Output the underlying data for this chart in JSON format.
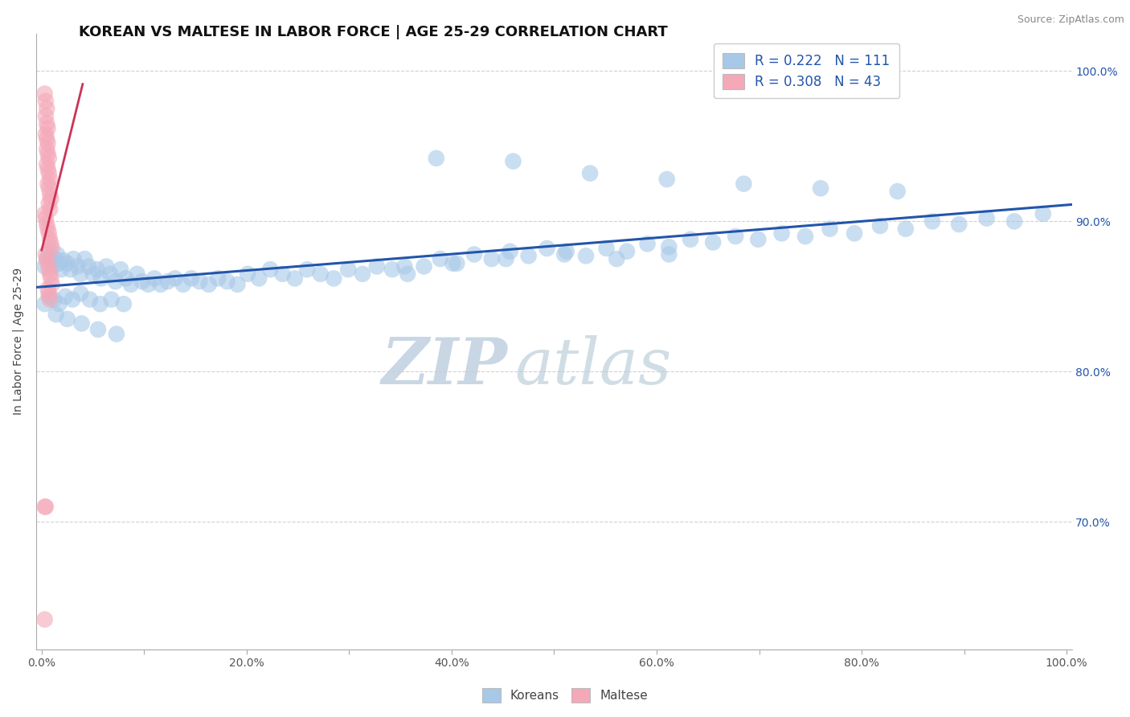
{
  "title": "KOREAN VS MALTESE IN LABOR FORCE | AGE 25-29 CORRELATION CHART",
  "source_text": "Source: ZipAtlas.com",
  "ylabel": "In Labor Force | Age 25-29",
  "xlim": [
    -0.005,
    1.005
  ],
  "ylim": [
    0.615,
    1.025
  ],
  "x_ticks": [
    0.0,
    0.1,
    0.2,
    0.3,
    0.4,
    0.5,
    0.6,
    0.7,
    0.8,
    0.9,
    1.0
  ],
  "x_tick_labels": [
    "0.0%",
    "",
    "20.0%",
    "",
    "40.0%",
    "",
    "60.0%",
    "",
    "80.0%",
    "",
    "100.0%"
  ],
  "y_ticks": [
    0.7,
    0.8,
    0.9,
    1.0
  ],
  "y_tick_labels": [
    "70.0%",
    "80.0%",
    "90.0%",
    "100.0%"
  ],
  "r_korean": 0.222,
  "n_korean": 111,
  "r_maltese": 0.308,
  "n_maltese": 43,
  "korean_color": "#a8c8e8",
  "maltese_color": "#f4a8b8",
  "korean_line_color": "#2255aa",
  "maltese_line_color": "#cc3355",
  "background_color": "#ffffff",
  "watermark_text1": "ZIP",
  "watermark_text2": "atlas",
  "watermark_color": "#c8d8e8",
  "title_fontsize": 13,
  "axis_label_fontsize": 10,
  "tick_fontsize": 10,
  "scatter_alpha": 0.6,
  "scatter_size": 220,
  "korean_x": [
    0.003,
    0.005,
    0.007,
    0.009,
    0.011,
    0.013,
    0.015,
    0.017,
    0.019,
    0.021,
    0.025,
    0.028,
    0.031,
    0.035,
    0.038,
    0.042,
    0.046,
    0.05,
    0.054,
    0.058,
    0.063,
    0.067,
    0.072,
    0.077,
    0.082,
    0.087,
    0.093,
    0.098,
    0.104,
    0.11,
    0.116,
    0.123,
    0.13,
    0.138,
    0.146,
    0.154,
    0.163,
    0.172,
    0.181,
    0.191,
    0.201,
    0.212,
    0.223,
    0.235,
    0.247,
    0.259,
    0.272,
    0.285,
    0.299,
    0.313,
    0.327,
    0.342,
    0.357,
    0.373,
    0.389,
    0.405,
    0.422,
    0.439,
    0.457,
    0.475,
    0.493,
    0.512,
    0.531,
    0.551,
    0.571,
    0.591,
    0.612,
    0.633,
    0.655,
    0.677,
    0.699,
    0.722,
    0.745,
    0.769,
    0.793,
    0.818,
    0.843,
    0.869,
    0.895,
    0.922,
    0.949,
    0.977,
    0.003,
    0.007,
    0.012,
    0.017,
    0.023,
    0.03,
    0.038,
    0.047,
    0.057,
    0.068,
    0.08,
    0.014,
    0.025,
    0.039,
    0.055,
    0.073,
    0.354,
    0.401,
    0.453,
    0.51,
    0.561,
    0.612,
    0.385,
    0.46,
    0.535,
    0.61,
    0.685,
    0.76,
    0.835
  ],
  "korean_y": [
    0.87,
    0.875,
    0.88,
    0.875,
    0.87,
    0.875,
    0.878,
    0.872,
    0.868,
    0.874,
    0.872,
    0.868,
    0.875,
    0.87,
    0.865,
    0.875,
    0.87,
    0.865,
    0.868,
    0.862,
    0.87,
    0.865,
    0.86,
    0.868,
    0.862,
    0.858,
    0.865,
    0.86,
    0.858,
    0.862,
    0.858,
    0.86,
    0.862,
    0.858,
    0.862,
    0.86,
    0.858,
    0.862,
    0.86,
    0.858,
    0.865,
    0.862,
    0.868,
    0.865,
    0.862,
    0.868,
    0.865,
    0.862,
    0.868,
    0.865,
    0.87,
    0.868,
    0.865,
    0.87,
    0.875,
    0.872,
    0.878,
    0.875,
    0.88,
    0.877,
    0.882,
    0.88,
    0.877,
    0.882,
    0.88,
    0.885,
    0.883,
    0.888,
    0.886,
    0.89,
    0.888,
    0.892,
    0.89,
    0.895,
    0.892,
    0.897,
    0.895,
    0.9,
    0.898,
    0.902,
    0.9,
    0.905,
    0.845,
    0.85,
    0.848,
    0.845,
    0.85,
    0.848,
    0.852,
    0.848,
    0.845,
    0.848,
    0.845,
    0.838,
    0.835,
    0.832,
    0.828,
    0.825,
    0.87,
    0.872,
    0.875,
    0.878,
    0.875,
    0.878,
    0.942,
    0.94,
    0.932,
    0.928,
    0.925,
    0.922,
    0.92
  ],
  "maltese_x": [
    0.003,
    0.004,
    0.005,
    0.004,
    0.005,
    0.006,
    0.004,
    0.005,
    0.006,
    0.005,
    0.006,
    0.007,
    0.005,
    0.006,
    0.007,
    0.008,
    0.006,
    0.007,
    0.008,
    0.009,
    0.007,
    0.008,
    0.003,
    0.004,
    0.005,
    0.006,
    0.007,
    0.008,
    0.009,
    0.01,
    0.004,
    0.005,
    0.006,
    0.007,
    0.008,
    0.009,
    0.01,
    0.006,
    0.007,
    0.008,
    0.004,
    0.003,
    0.003
  ],
  "maltese_y": [
    0.985,
    0.98,
    0.975,
    0.97,
    0.965,
    0.962,
    0.958,
    0.955,
    0.952,
    0.948,
    0.945,
    0.942,
    0.938,
    0.935,
    0.932,
    0.928,
    0.925,
    0.922,
    0.918,
    0.915,
    0.912,
    0.908,
    0.905,
    0.902,
    0.898,
    0.895,
    0.892,
    0.888,
    0.885,
    0.882,
    0.878,
    0.875,
    0.872,
    0.868,
    0.865,
    0.862,
    0.858,
    0.855,
    0.852,
    0.848,
    0.71,
    0.71,
    0.635
  ]
}
